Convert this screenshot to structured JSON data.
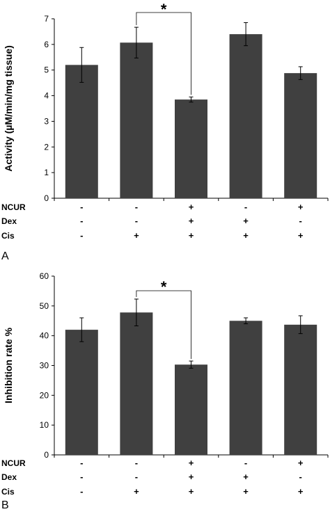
{
  "chart_data": [
    {
      "type": "bar",
      "panel_label": "A",
      "ylabel": "Activity (µM/min/mg tissue)",
      "ylim": [
        0,
        7
      ],
      "yticks": [
        0,
        1,
        2,
        3,
        4,
        5,
        6,
        7
      ],
      "values": [
        5.2,
        6.07,
        3.85,
        6.4,
        4.88
      ],
      "errors": [
        0.68,
        0.6,
        0.1,
        0.45,
        0.25
      ],
      "bar_color": "#404040",
      "significance": {
        "from": 1,
        "to": 2,
        "label": "*"
      },
      "treatment_rows": [
        {
          "label": "NCUR",
          "signs": [
            "-",
            "-",
            "+",
            "-",
            "+"
          ]
        },
        {
          "label": "Dex",
          "signs": [
            "-",
            "-",
            "+",
            "+",
            "-"
          ]
        },
        {
          "label": "Cis",
          "signs": [
            "-",
            "+",
            "+",
            "+",
            "+"
          ]
        }
      ]
    },
    {
      "type": "bar",
      "panel_label": "B",
      "ylabel": "Inhibition rate %",
      "ylim": [
        0,
        60
      ],
      "yticks": [
        0,
        10,
        20,
        30,
        40,
        50,
        60
      ],
      "values": [
        42.0,
        47.8,
        30.3,
        45.0,
        43.7
      ],
      "errors": [
        4.0,
        4.5,
        1.2,
        1.0,
        3.0
      ],
      "bar_color": "#404040",
      "significance": {
        "from": 1,
        "to": 2,
        "label": "*"
      },
      "treatment_rows": [
        {
          "label": "NCUR",
          "signs": [
            "-",
            "-",
            "+",
            "-",
            "+"
          ]
        },
        {
          "label": "Dex",
          "signs": [
            "-",
            "-",
            "+",
            "+",
            "-"
          ]
        },
        {
          "label": "Cis",
          "signs": [
            "-",
            "+",
            "+",
            "+",
            "+"
          ]
        }
      ]
    }
  ]
}
